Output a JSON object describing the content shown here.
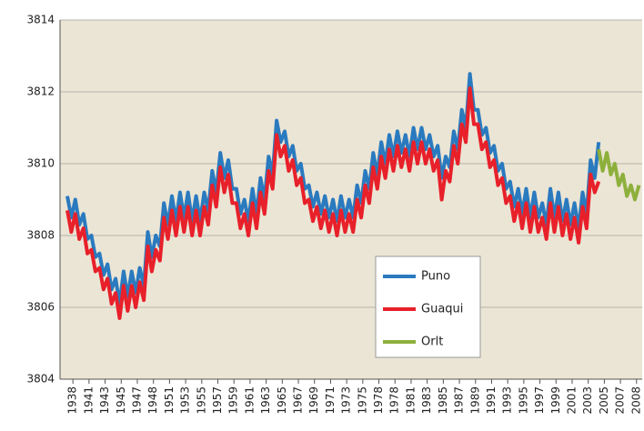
{
  "chart_data": {
    "type": "line",
    "x": [
      1937.3,
      1937.8,
      1938.3,
      1938.8,
      1939.3,
      1939.8,
      1940.3,
      1940.8,
      1941.3,
      1941.8,
      1942.3,
      1942.8,
      1943.3,
      1943.8,
      1944.3,
      1944.8,
      1945.3,
      1945.8,
      1946.3,
      1946.8,
      1947.3,
      1947.8,
      1948.3,
      1948.8,
      1949.3,
      1949.8,
      1950.3,
      1950.8,
      1951.3,
      1951.8,
      1952.3,
      1952.8,
      1953.3,
      1953.8,
      1954.3,
      1954.8,
      1955.3,
      1955.8,
      1956.3,
      1956.8,
      1957.3,
      1957.8,
      1958.3,
      1958.8,
      1959.3,
      1959.8,
      1960.3,
      1960.8,
      1961.3,
      1961.8,
      1962.3,
      1962.8,
      1963.3,
      1963.8,
      1964.3,
      1964.8,
      1965.3,
      1965.8,
      1966.3,
      1966.8,
      1967.3,
      1967.8,
      1968.3,
      1968.8,
      1969.3,
      1969.8,
      1970.3,
      1970.8,
      1971.3,
      1971.8,
      1972.3,
      1972.8,
      1973.3,
      1973.8,
      1974.3,
      1974.8,
      1975.3,
      1975.8,
      1976.3,
      1976.8,
      1977.3,
      1977.8,
      1978.3,
      1978.8,
      1979.3,
      1979.8,
      1980.3,
      1980.8,
      1981.3,
      1981.8,
      1982.3,
      1982.8,
      1983.3,
      1983.8,
      1984.3,
      1984.8,
      1985.3,
      1985.8,
      1986.3,
      1986.8,
      1987.3,
      1987.8,
      1988.3,
      1988.8,
      1989.3,
      1989.8,
      1990.3,
      1990.8,
      1991.3,
      1991.8,
      1992.3,
      1992.8,
      1993.3,
      1993.8,
      1994.3,
      1994.8,
      1995.3,
      1995.8,
      1996.3,
      1996.8,
      1997.3,
      1997.8,
      1998.3,
      1998.8,
      1999.3,
      1999.8,
      2000.3,
      2000.8,
      2001.3,
      2001.8,
      2002.3,
      2002.8,
      2003.3
    ],
    "series": [
      {
        "name": "Puno",
        "color": "#2a7abf",
        "values": [
          3809.1,
          3808.5,
          3809.0,
          3808.3,
          3808.6,
          3807.9,
          3808.0,
          3807.4,
          3807.5,
          3806.9,
          3807.2,
          3806.5,
          3806.8,
          3806.1,
          3807.0,
          3806.3,
          3807.0,
          3806.4,
          3807.1,
          3806.6,
          3808.1,
          3807.4,
          3808.0,
          3807.7,
          3808.9,
          3808.3,
          3809.1,
          3808.4,
          3809.2,
          3808.5,
          3809.2,
          3808.4,
          3809.1,
          3808.4,
          3809.2,
          3808.7,
          3809.8,
          3809.2,
          3810.3,
          3809.6,
          3810.1,
          3809.3,
          3809.3,
          3808.6,
          3809.0,
          3808.4,
          3809.3,
          3808.6,
          3809.6,
          3809.0,
          3810.2,
          3809.7,
          3811.2,
          3810.6,
          3810.9,
          3810.2,
          3810.5,
          3809.8,
          3810.0,
          3809.3,
          3809.4,
          3808.8,
          3809.2,
          3808.6,
          3809.1,
          3808.5,
          3809.0,
          3808.4,
          3809.1,
          3808.5,
          3809.0,
          3808.5,
          3809.4,
          3808.9,
          3809.8,
          3809.3,
          3810.3,
          3809.7,
          3810.6,
          3810.0,
          3810.8,
          3810.2,
          3810.9,
          3810.3,
          3810.8,
          3810.2,
          3811.0,
          3810.4,
          3811.0,
          3810.4,
          3810.8,
          3810.2,
          3810.5,
          3809.6,
          3810.2,
          3809.9,
          3810.9,
          3810.4,
          3811.5,
          3811.0,
          3812.5,
          3811.5,
          3811.5,
          3810.8,
          3811.0,
          3810.3,
          3810.5,
          3809.8,
          3810.0,
          3809.3,
          3809.5,
          3808.8,
          3809.3,
          3808.6,
          3809.3,
          3808.5,
          3809.2,
          3808.5,
          3808.9,
          3808.3,
          3809.3,
          3808.5,
          3809.2,
          3808.4,
          3809.0,
          3808.3,
          3808.9,
          3808.2,
          3809.2,
          3808.6,
          3810.1,
          3809.6,
          3810.6
        ]
      },
      {
        "name": "Guaqui",
        "color": "#e8202a",
        "values": [
          3808.7,
          3808.1,
          3808.6,
          3807.9,
          3808.2,
          3807.5,
          3807.6,
          3807.0,
          3807.1,
          3806.5,
          3806.8,
          3806.1,
          3806.4,
          3805.7,
          3806.6,
          3805.9,
          3806.6,
          3806.0,
          3806.7,
          3806.2,
          3807.7,
          3807.0,
          3807.6,
          3807.3,
          3808.5,
          3807.9,
          3808.7,
          3808.0,
          3808.8,
          3808.1,
          3808.8,
          3808.0,
          3808.7,
          3808.0,
          3808.8,
          3808.3,
          3809.4,
          3808.8,
          3809.9,
          3809.2,
          3809.7,
          3808.9,
          3808.9,
          3808.2,
          3808.6,
          3808.0,
          3808.9,
          3808.2,
          3809.2,
          3808.6,
          3809.8,
          3809.3,
          3810.8,
          3810.2,
          3810.5,
          3809.8,
          3810.1,
          3809.4,
          3809.6,
          3808.9,
          3809.0,
          3808.4,
          3808.8,
          3808.2,
          3808.7,
          3808.1,
          3808.6,
          3808.0,
          3808.7,
          3808.1,
          3808.6,
          3808.1,
          3809.0,
          3808.5,
          3809.4,
          3808.9,
          3809.9,
          3809.3,
          3810.2,
          3809.6,
          3810.4,
          3809.8,
          3810.5,
          3809.9,
          3810.4,
          3809.8,
          3810.6,
          3810.0,
          3810.6,
          3810.0,
          3810.4,
          3809.8,
          3810.1,
          3809.0,
          3809.8,
          3809.5,
          3810.5,
          3810.0,
          3811.1,
          3810.6,
          3812.1,
          3811.1,
          3811.1,
          3810.4,
          3810.6,
          3809.9,
          3810.1,
          3809.4,
          3809.6,
          3808.9,
          3809.1,
          3808.4,
          3808.9,
          3808.2,
          3808.9,
          3808.1,
          3808.8,
          3808.1,
          3808.5,
          3807.9,
          3808.9,
          3808.1,
          3808.8,
          3808.0,
          3808.6,
          3807.9,
          3808.5,
          3807.8,
          3808.8,
          3808.2,
          3809.7,
          3809.2,
          3809.5
        ]
      },
      {
        "name": "Orlt",
        "color": "#8db03c",
        "x": [
          2003.3,
          2003.8,
          2004.3,
          2004.8,
          2005.3,
          2005.8,
          2006.3,
          2006.8,
          2007.3,
          2007.8,
          2008.3
        ],
        "values": [
          3810.4,
          3809.8,
          3810.3,
          3809.7,
          3810.0,
          3809.4,
          3809.7,
          3809.1,
          3809.4,
          3809.0,
          3809.4
        ]
      }
    ],
    "xlim": [
      1936.4,
      2008.7
    ],
    "xticks": [
      1938,
      {
        "value": 1940,
        "label": "1941"
      },
      {
        "value": 1942,
        "label": "1943"
      },
      {
        "value": 1944,
        "label": "1945"
      },
      {
        "value": 1946,
        "label": "1947"
      },
      1948,
      {
        "value": 1950,
        "label": "1951"
      },
      {
        "value": 1952,
        "label": "1953"
      },
      {
        "value": 1954,
        "label": "1955"
      },
      {
        "value": 1956,
        "label": "1957"
      },
      {
        "value": 1958,
        "label": "1959"
      },
      {
        "value": 1960,
        "label": "1961"
      },
      {
        "value": 1962,
        "label": "1963"
      },
      {
        "value": 1964,
        "label": "1965"
      },
      {
        "value": 1966,
        "label": "1967"
      },
      {
        "value": 1968,
        "label": "1969"
      },
      {
        "value": 1970,
        "label": "1971"
      },
      {
        "value": 1972,
        "label": "1973"
      },
      {
        "value": 1974,
        "label": "1975"
      },
      {
        "value": 1976,
        "label": "1978"
      },
      1978,
      {
        "value": 1980,
        "label": "1981"
      },
      {
        "value": 1982,
        "label": "1983"
      },
      {
        "value": 1984,
        "label": "1985"
      },
      {
        "value": 1986,
        "label": "1987"
      },
      {
        "value": 1988,
        "label": "1989"
      },
      {
        "value": 1990,
        "label": "1991"
      },
      {
        "value": 1992,
        "label": "1993"
      },
      {
        "value": 1994,
        "label": "1995"
      },
      {
        "value": 1996,
        "label": "1997"
      },
      {
        "value": 1998,
        "label": "1999"
      },
      {
        "value": 2000,
        "label": "2001"
      },
      {
        "value": 2002,
        "label": "2003"
      },
      {
        "value": 2004,
        "label": "2005"
      },
      {
        "value": 2006,
        "label": "2007"
      },
      2008
    ],
    "ylim": [
      3804,
      3814
    ],
    "yticks": [
      3804,
      3806,
      3808,
      3810,
      3812,
      3814
    ],
    "grid": true
  }
}
